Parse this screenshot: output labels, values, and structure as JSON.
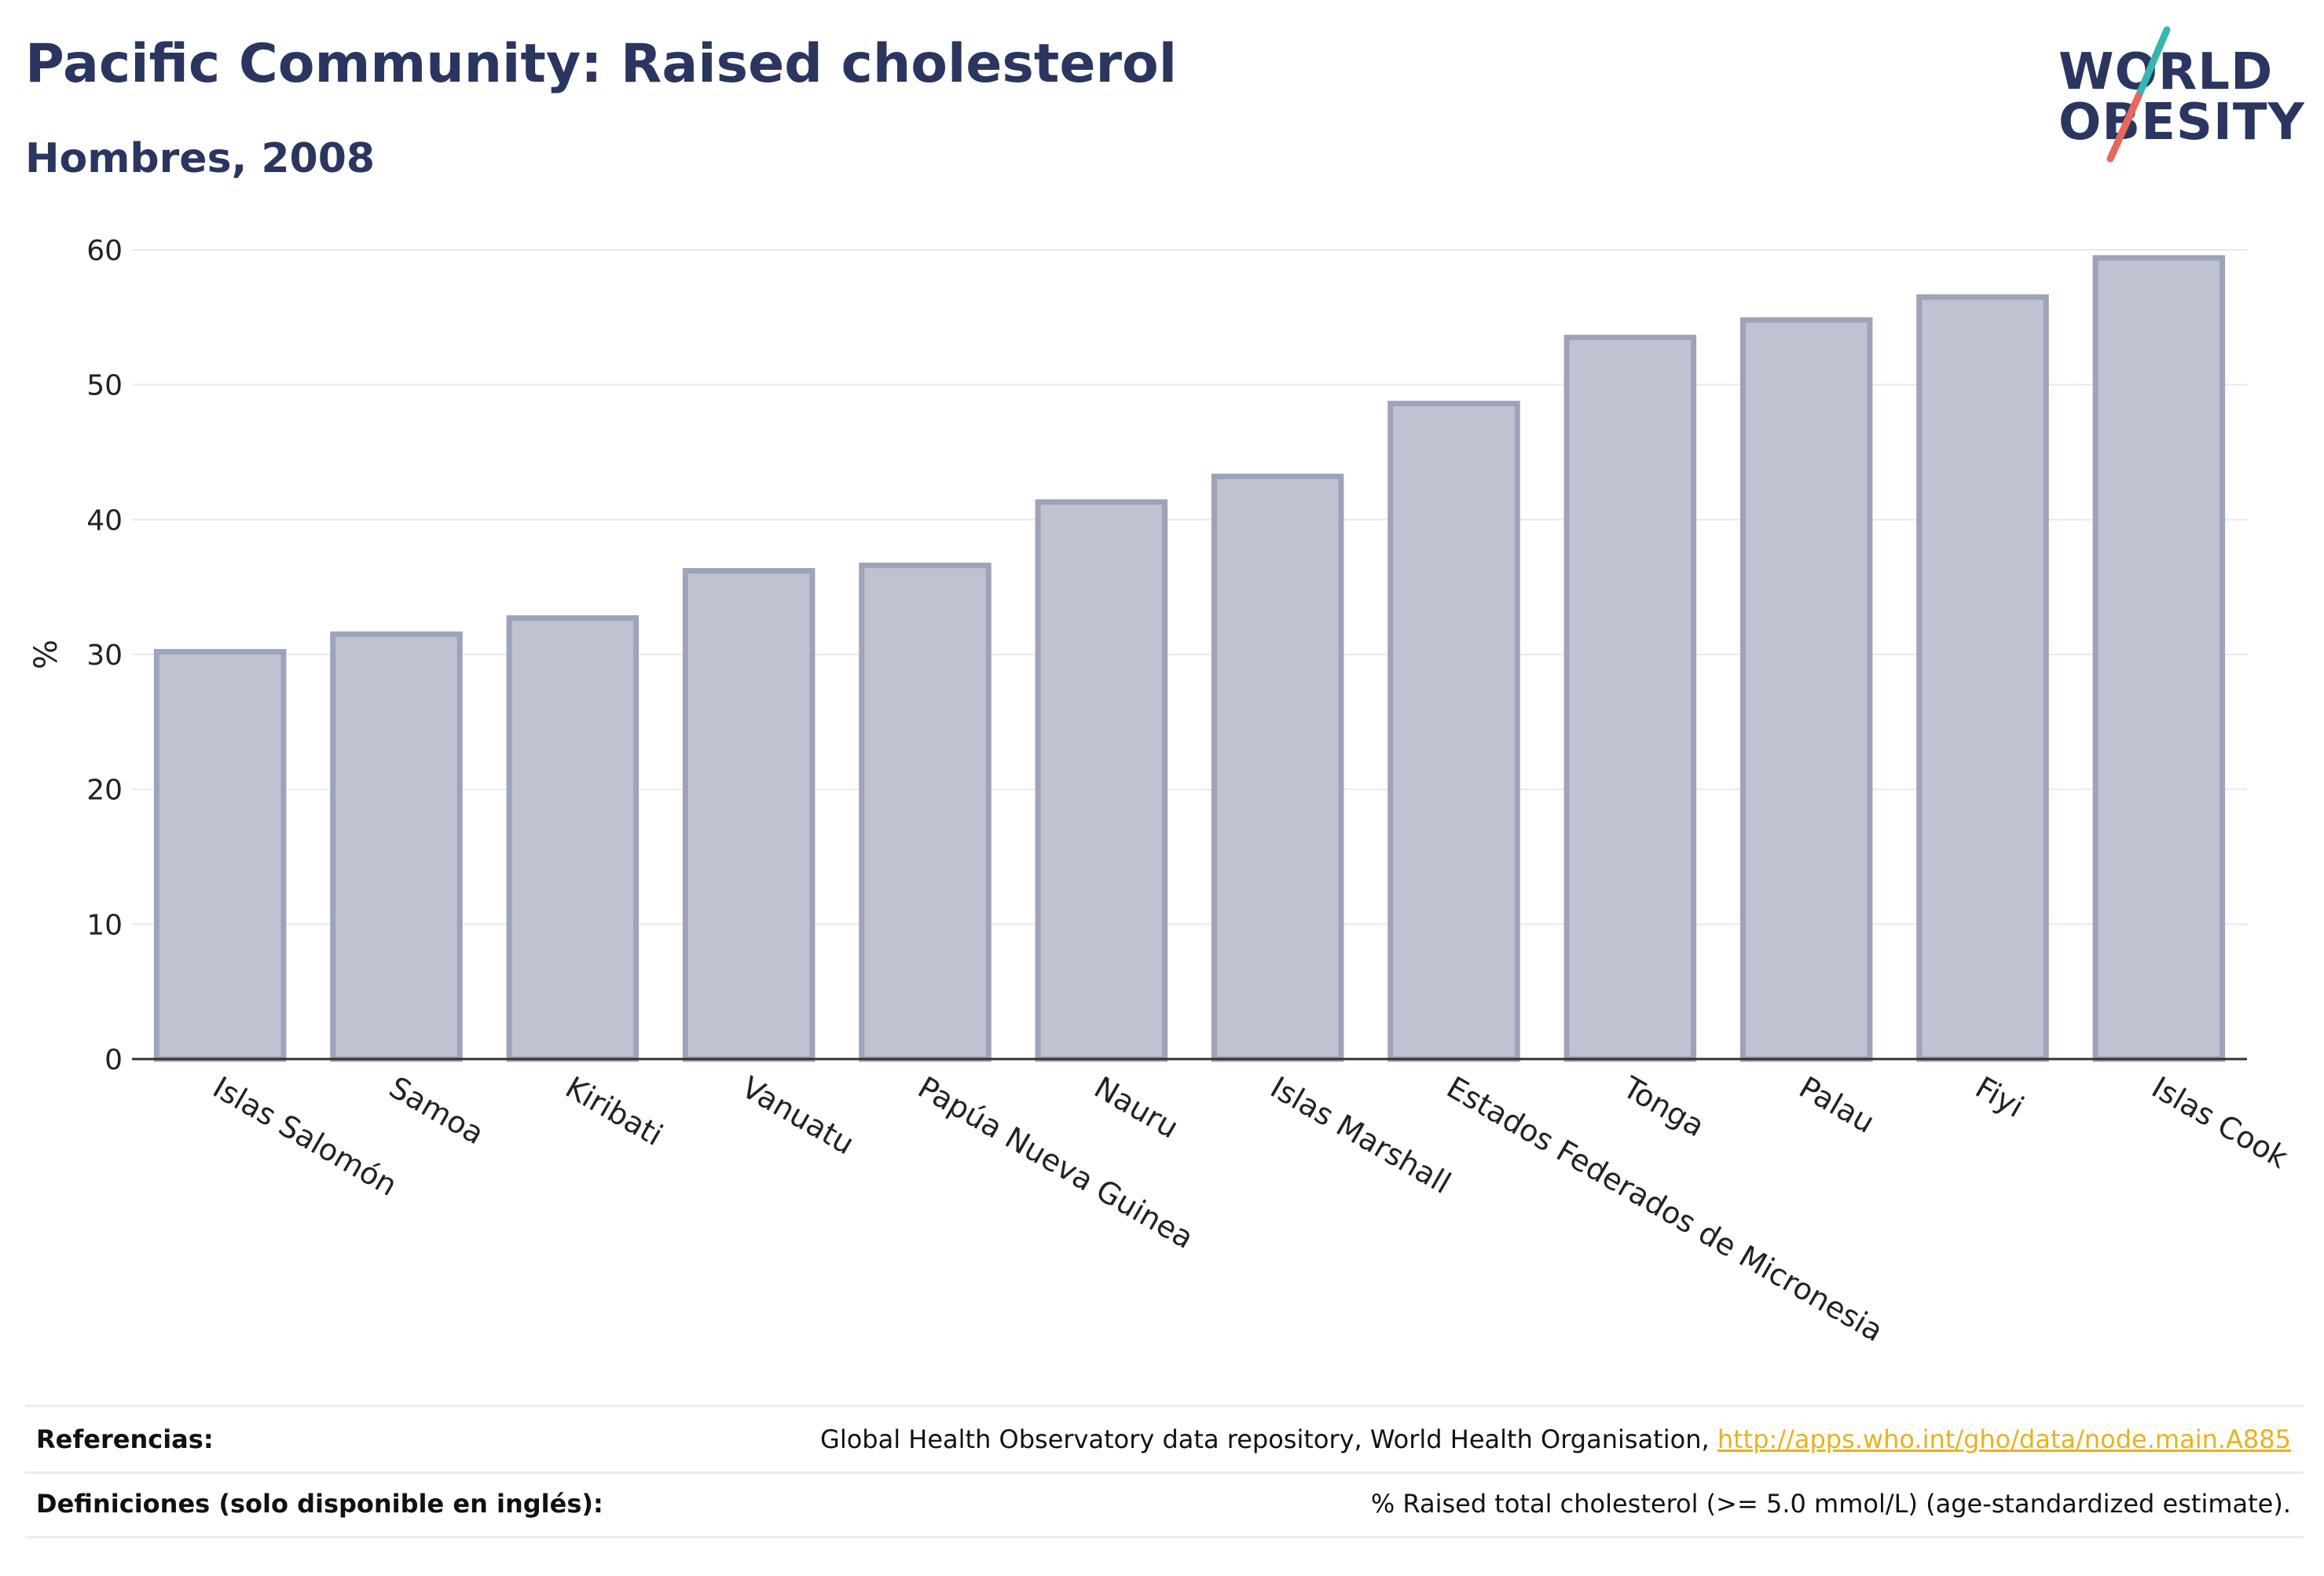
{
  "header": {
    "title": "Pacific Community: Raised cholesterol",
    "subtitle": "Hombres, 2008"
  },
  "logo": {
    "line1": "WORLD",
    "line2": "OBESITY",
    "colors": {
      "text": "#2a3560",
      "slash_top": "#37b6b0",
      "slash_bottom": "#e8685a"
    }
  },
  "colors": {
    "bar_fill": "#bfc3d1",
    "bar_stroke": "#9da3b8",
    "grid": "#e8e9ee",
    "axis": "#333333",
    "text": "#2a3560",
    "link": "#e8b21d"
  },
  "chart_data": {
    "type": "bar",
    "categories": [
      "Islas Salomón",
      "Samoa",
      "Kiribati",
      "Vanuatu",
      "Papúa Nueva Guinea",
      "Nauru",
      "Islas Marshall",
      "Estados Federados de Micronesia",
      "Tonga",
      "Palau",
      "Fiyi",
      "Islas Cook"
    ],
    "values": [
      30.2,
      31.5,
      32.7,
      36.2,
      36.6,
      41.3,
      43.2,
      48.6,
      53.5,
      54.8,
      56.5,
      59.4
    ],
    "title": "Pacific Community: Raised cholesterol",
    "subtitle": "Hombres, 2008",
    "xlabel": "",
    "ylabel": "%",
    "ylim": [
      0,
      60
    ],
    "yticks": [
      0,
      10,
      20,
      30,
      40,
      50,
      60
    ],
    "grid": true,
    "legend": "none"
  },
  "footer": {
    "references_label": "Referencias:",
    "references_text": "Global Health Observatory data repository, World Health Organisation, ",
    "references_link": "http://apps.who.int/gho/data/node.main.A885",
    "definitions_label": "Definiciones (solo disponible en inglés):",
    "definitions_text": "% Raised total cholesterol (>= 5.0 mmol/L) (age-standardized estimate)."
  }
}
